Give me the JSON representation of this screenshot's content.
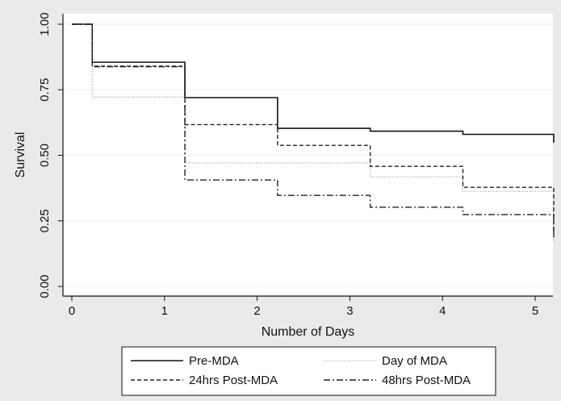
{
  "chart_data": {
    "type": "line",
    "step": true,
    "xlabel": "Number of Days",
    "ylabel": "Survival",
    "xlim": [
      0,
      5.25
    ],
    "ylim": [
      0,
      1.0
    ],
    "x_ticks": [
      0,
      1,
      2,
      3,
      4,
      5
    ],
    "y_ticks": [
      0.0,
      0.25,
      0.5,
      0.75,
      1.0
    ],
    "x_tick_labels": [
      "0",
      "1",
      "2",
      "3",
      "4",
      "5"
    ],
    "y_tick_labels": [
      "0.00",
      "0.25",
      "0.50",
      "0.75",
      "1.00"
    ],
    "grid": "horizontal",
    "legend_position": "bottom",
    "series": [
      {
        "name": "Pre-MDA",
        "style": "solid",
        "points": [
          [
            0,
            1.0
          ],
          [
            0.22,
            0.855
          ],
          [
            1.22,
            0.72
          ],
          [
            2.22,
            0.603
          ],
          [
            3.22,
            0.592
          ],
          [
            4.22,
            0.58
          ],
          [
            5.2,
            0.58
          ],
          [
            5.2,
            0.548
          ]
        ]
      },
      {
        "name": "Day of MDA",
        "style": "dotted",
        "points": [
          [
            0,
            1.0
          ],
          [
            0.22,
            0.722
          ],
          [
            1.22,
            0.471
          ],
          [
            3.22,
            0.418
          ],
          [
            4.22,
            0.362
          ],
          [
            5.2,
            0.362
          ],
          [
            5.2,
            0.168
          ]
        ]
      },
      {
        "name": "24hrs Post-MDA",
        "style": "dashed",
        "points": [
          [
            0,
            1.0
          ],
          [
            0.22,
            0.84
          ],
          [
            1.22,
            0.617
          ],
          [
            2.22,
            0.538
          ],
          [
            3.22,
            0.458
          ],
          [
            4.22,
            0.378
          ],
          [
            5.2,
            0.378
          ],
          [
            5.2,
            0.195
          ]
        ]
      },
      {
        "name": "48hrs Post-MDA",
        "style": "dashdot",
        "points": [
          [
            0,
            1.0
          ],
          [
            0.22,
            0.838
          ],
          [
            1.22,
            0.406
          ],
          [
            2.22,
            0.347
          ],
          [
            3.22,
            0.302
          ],
          [
            4.22,
            0.274
          ],
          [
            5.2,
            0.274
          ],
          [
            5.2,
            0.178
          ]
        ]
      }
    ]
  }
}
